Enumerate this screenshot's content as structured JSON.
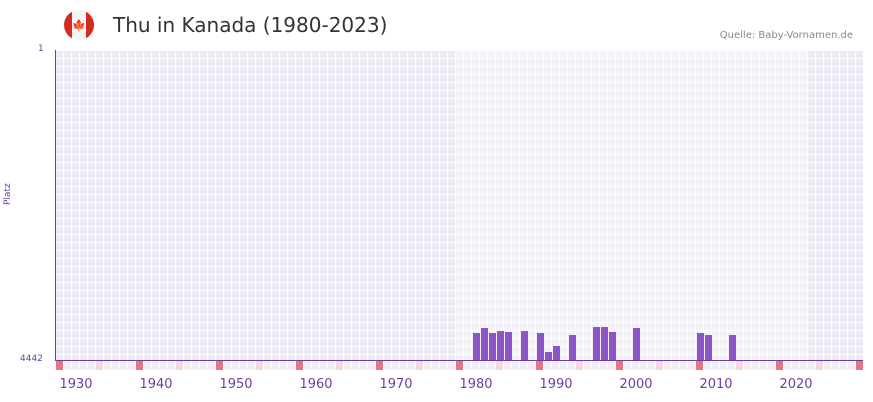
{
  "header": {
    "title": "Thu in Kanada (1980-2023)",
    "source": "Quelle: Baby-Vornamen.de",
    "flag_icon": "canada-flag-icon"
  },
  "chart_data": {
    "type": "bar",
    "title": "Thu in Kanada (1980-2023)",
    "xlabel": "",
    "ylabel": "Platz",
    "y_tick_labels": [
      "1",
      "4442"
    ],
    "ylim": [
      4442,
      1
    ],
    "x_tick_labels": [
      "1930",
      "1940",
      "1950",
      "1960",
      "1970",
      "1980",
      "1990",
      "2000",
      "2010",
      "2020"
    ],
    "grid": true,
    "categories": [
      1980,
      1981,
      1982,
      1983,
      1984,
      1986,
      1988,
      1989,
      1990,
      1992,
      1995,
      1996,
      1997,
      2000,
      2008,
      2009,
      2012
    ],
    "values": [
      4050,
      3980,
      4060,
      4020,
      4040,
      4030,
      4060,
      4330,
      4240,
      4080,
      3970,
      3970,
      4040,
      3980,
      4060,
      4080,
      4090
    ],
    "colors": {
      "bar": "#8e55c8",
      "axis": "#6b3fa0",
      "decade_tick": "#e57583",
      "half_decade_tick": "#f5d6e0"
    }
  }
}
